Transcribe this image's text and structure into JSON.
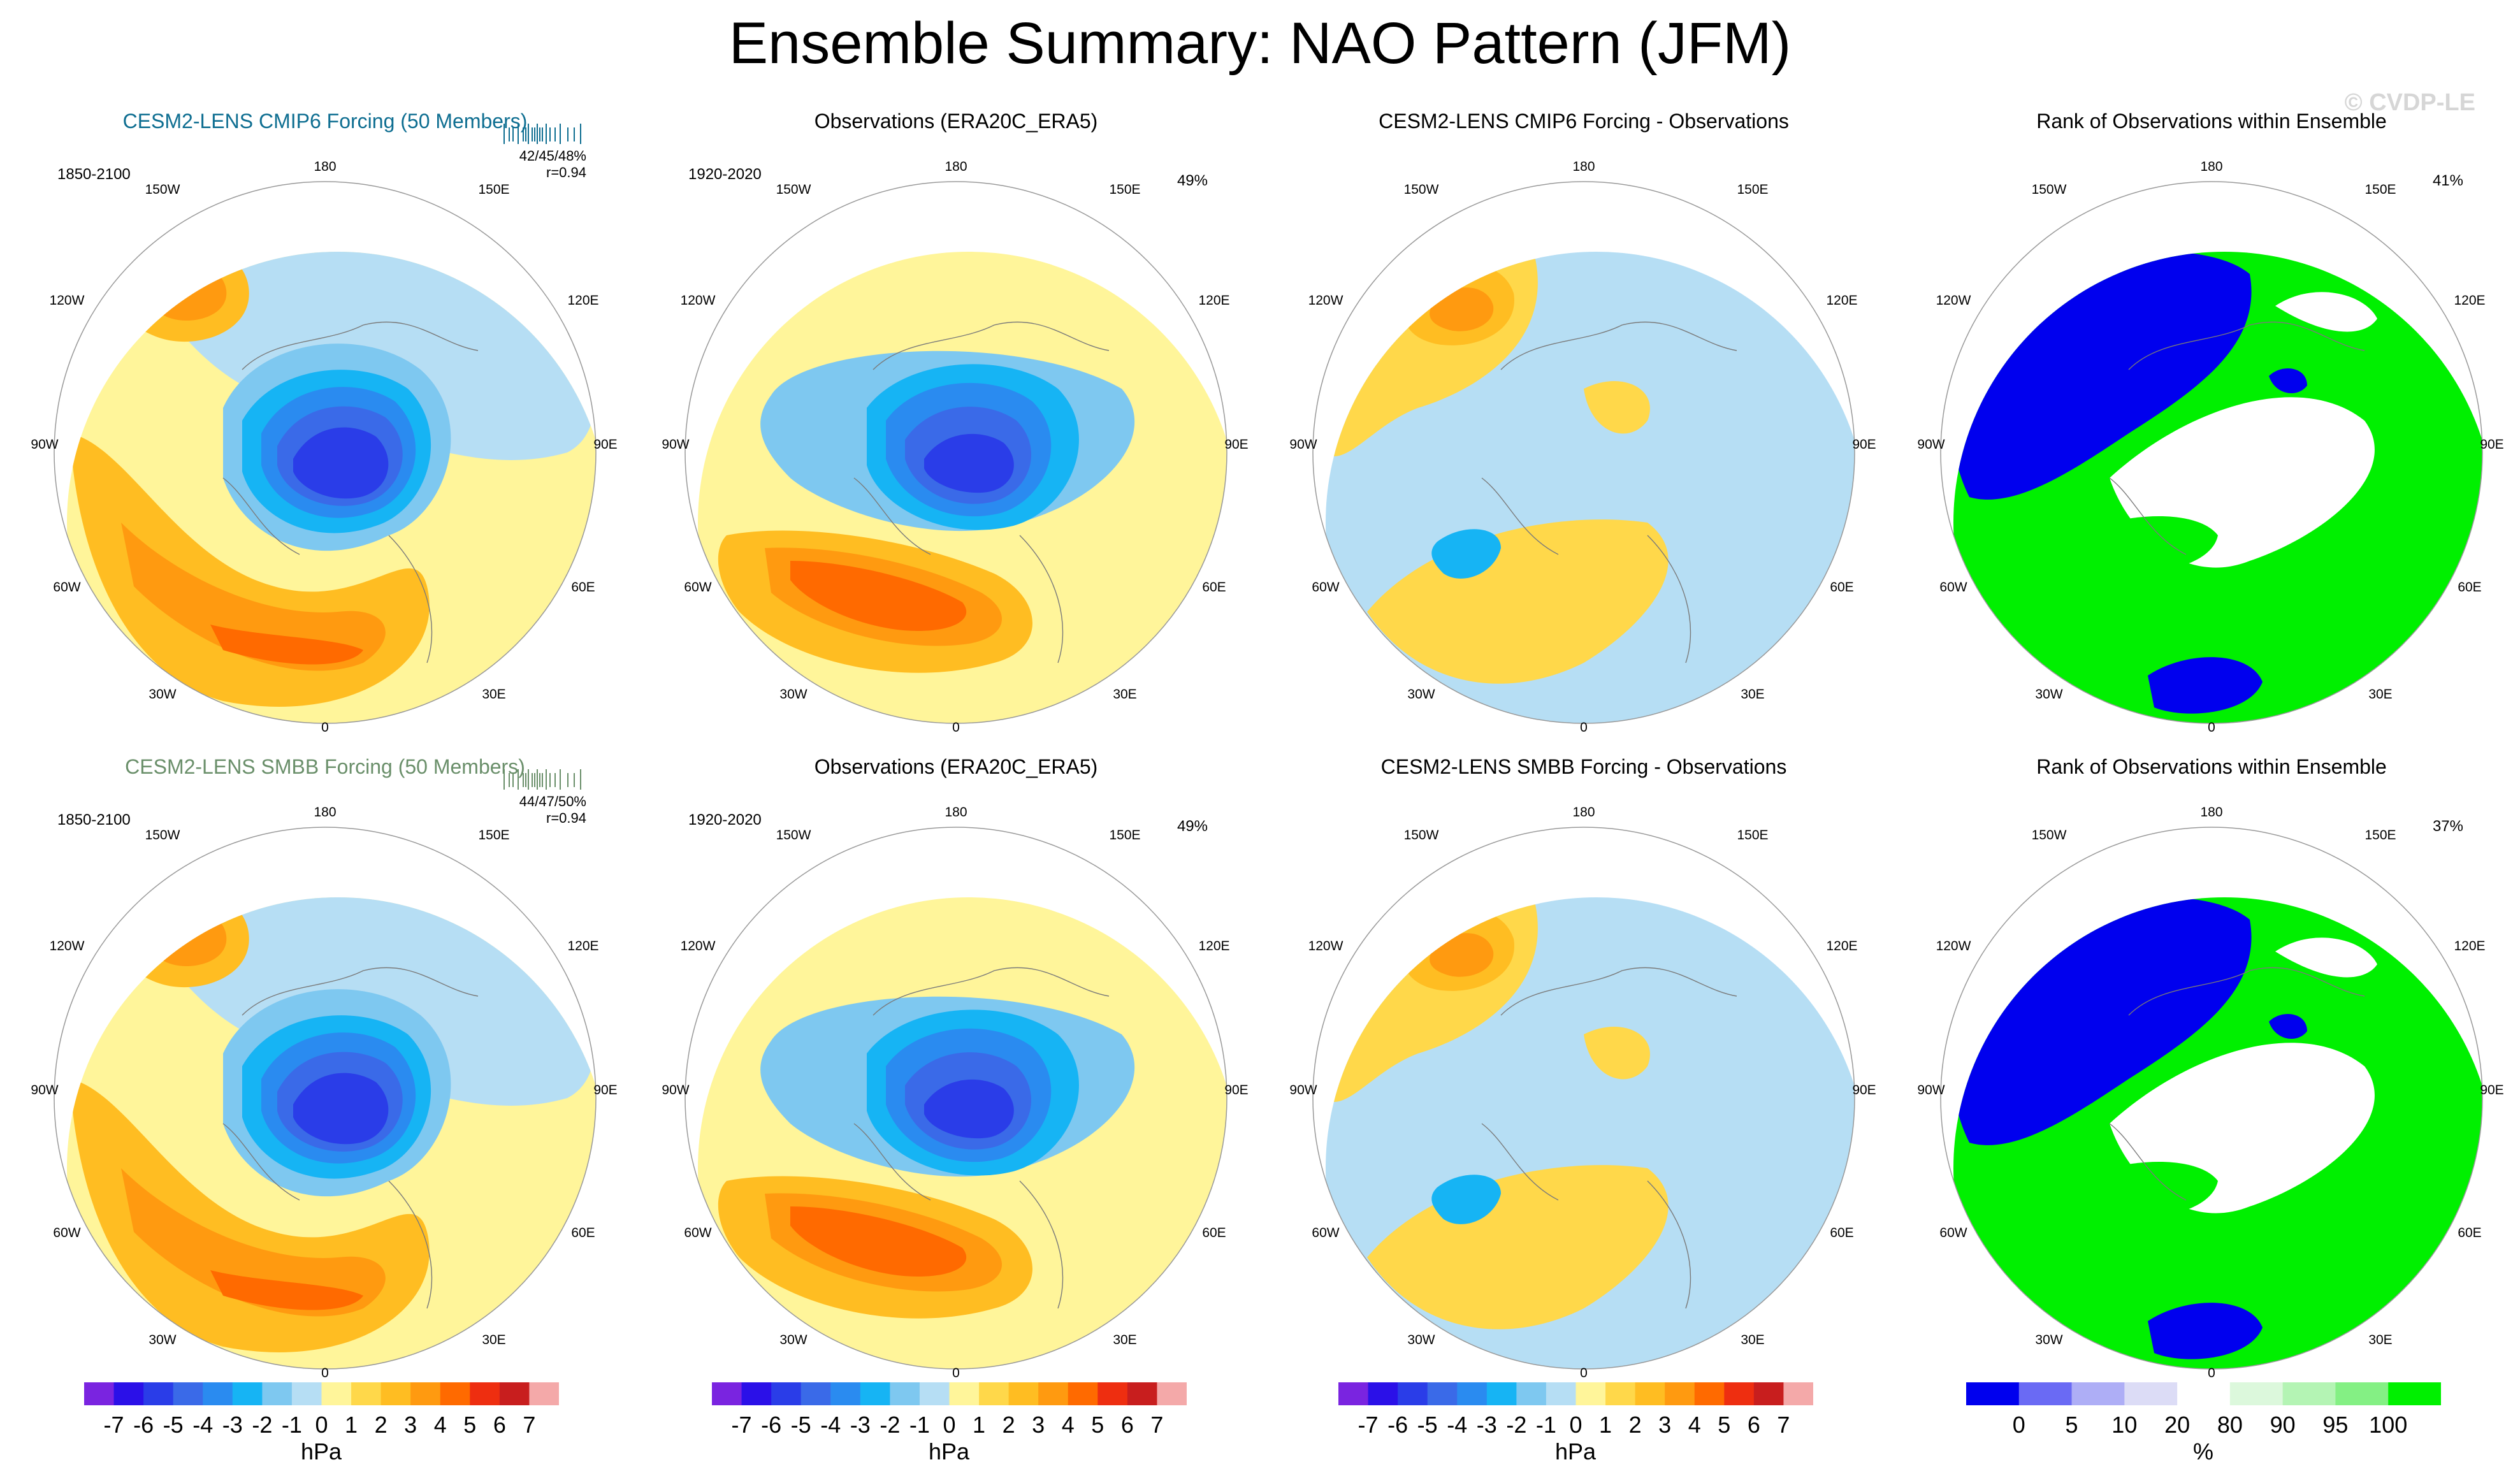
{
  "title": "Ensemble Summary: NAO Pattern (JFM)",
  "watermark": "© CVDP-LE",
  "colors": {
    "model_title_row1": "#0e6e91",
    "model_title_row2": "#6a8f6a",
    "ocean": "#ffffff",
    "outline": "#888888"
  },
  "lon_labels": {
    "top": "180",
    "tl": "150W",
    "tr": "150E",
    "l1": "120W",
    "r1": "120E",
    "l2": "90W",
    "r2": "90E",
    "l3": "60W",
    "r3": "60E",
    "bl": "30W",
    "br": "30E",
    "bottom": "0"
  },
  "chart_data": [
    {
      "type": "heatmap",
      "panel": "row1-col1",
      "title": "CESM2-LENS CMIP6 Forcing (50 Members)",
      "period": "1850-2100",
      "stats": "42/45/48%",
      "corr": "r=0.94",
      "units": "hPa",
      "features": [
        {
          "name": "Pacific high",
          "value": 4
        },
        {
          "name": "Arctic low",
          "value": -6
        },
        {
          "name": "Atlantic high",
          "value": 4
        }
      ]
    },
    {
      "type": "heatmap",
      "panel": "row1-col2",
      "title": "Observations (ERA20C_ERA5)",
      "period": "1920-2020",
      "variance_pct": "49%",
      "units": "hPa",
      "features": [
        {
          "name": "Arctic low",
          "value": -5
        },
        {
          "name": "Atlantic high",
          "value": 5
        }
      ]
    },
    {
      "type": "heatmap",
      "panel": "row1-col3",
      "title": "CESM2-LENS CMIP6 Forcing - Observations",
      "units": "hPa",
      "features": [
        {
          "name": "Pacific difference",
          "value": 3
        },
        {
          "name": "Atlantic difference",
          "value": -2
        }
      ]
    },
    {
      "type": "heatmap",
      "panel": "row1-col4",
      "title": "Rank of Observations within Ensemble",
      "variance_pct": "41%",
      "units": "%"
    },
    {
      "type": "heatmap",
      "panel": "row2-col1",
      "title": "CESM2-LENS SMBB Forcing (50 Members)",
      "period": "1850-2100",
      "stats": "44/47/50%",
      "corr": "r=0.94",
      "units": "hPa",
      "features": [
        {
          "name": "Pacific high",
          "value": 4
        },
        {
          "name": "Arctic low",
          "value": -7
        },
        {
          "name": "Atlantic high",
          "value": 4
        }
      ]
    },
    {
      "type": "heatmap",
      "panel": "row2-col2",
      "title": "Observations (ERA20C_ERA5)",
      "period": "1920-2020",
      "variance_pct": "49%",
      "units": "hPa",
      "features": [
        {
          "name": "Arctic low",
          "value": -5
        },
        {
          "name": "Atlantic high",
          "value": 5
        }
      ]
    },
    {
      "type": "heatmap",
      "panel": "row2-col3",
      "title": "CESM2-LENS SMBB Forcing - Observations",
      "units": "hPa",
      "features": [
        {
          "name": "Pacific difference",
          "value": 3
        },
        {
          "name": "Atlantic difference",
          "value": -2
        }
      ]
    },
    {
      "type": "heatmap",
      "panel": "row2-col4",
      "title": "Rank of Observations within Ensemble",
      "variance_pct": "37%",
      "units": "%"
    }
  ],
  "colorbar_hpa": {
    "unit": "hPa",
    "ticks": [
      "-7",
      "-6",
      "-5",
      "-4",
      "-3",
      "-2",
      "-1",
      "0",
      "1",
      "2",
      "3",
      "4",
      "5",
      "6",
      "7"
    ],
    "colors": [
      "#7a24e0",
      "#2b10e8",
      "#2a3de8",
      "#3a6ae8",
      "#2a8bf0",
      "#16b4f4",
      "#7ec8f0",
      "#b6def4",
      "#fff59a",
      "#ffd84a",
      "#ffbd22",
      "#ff9a10",
      "#ff6a00",
      "#ee2e10",
      "#c81e1e",
      "#f4a9a9"
    ]
  },
  "colorbar_rank": {
    "unit": "%",
    "ticks": [
      "0",
      "5",
      "10",
      "20",
      "80",
      "90",
      "95",
      "100"
    ],
    "colors": [
      "#0000ee",
      "#6a6af4",
      "#aeaef6",
      "#dcdcf6",
      "#ffffff",
      "#dcf8dc",
      "#b4f4b4",
      "#84f084",
      "#00f000"
    ]
  }
}
